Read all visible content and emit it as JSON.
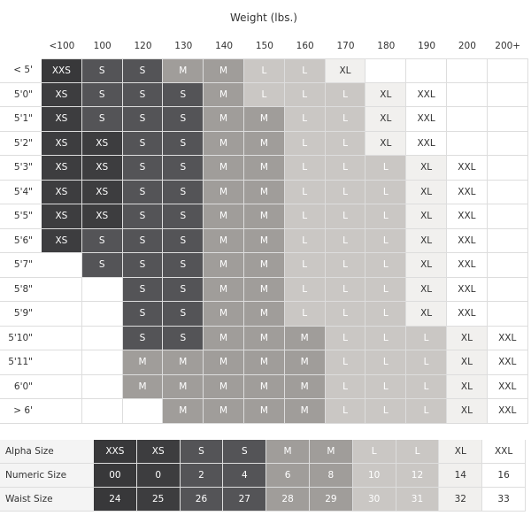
{
  "title": "Weight (lbs.)",
  "weights": [
    "<100",
    "100",
    "120",
    "130",
    "140",
    "150",
    "160",
    "170",
    "180",
    "190",
    "200",
    "200+"
  ],
  "size_colors": {
    "XXS": "#38383a",
    "XS": "#3d3d3f",
    "S": "#545457",
    "M": "#a09d9a",
    "L": "#cac7c4",
    "XL": "#f1f0ee",
    "XXL": "#ffffff"
  },
  "rows": [
    {
      "height": "< 5'",
      "sizes": [
        "XXS",
        "S",
        "S",
        "M",
        "M",
        "L",
        "L",
        "XL",
        null,
        null,
        null,
        null
      ]
    },
    {
      "height": "5'0\"",
      "sizes": [
        "XS",
        "S",
        "S",
        "S",
        "M",
        "L",
        "L",
        "L",
        "XL",
        "XXL",
        null,
        null
      ]
    },
    {
      "height": "5'1\"",
      "sizes": [
        "XS",
        "S",
        "S",
        "S",
        "M",
        "M",
        "L",
        "L",
        "XL",
        "XXL",
        null,
        null
      ]
    },
    {
      "height": "5'2\"",
      "sizes": [
        "XS",
        "XS",
        "S",
        "S",
        "M",
        "M",
        "L",
        "L",
        "XL",
        "XXL",
        null,
        null
      ]
    },
    {
      "height": "5'3\"",
      "sizes": [
        "XS",
        "XS",
        "S",
        "S",
        "M",
        "M",
        "L",
        "L",
        "L",
        "XL",
        "XXL",
        null
      ]
    },
    {
      "height": "5'4\"",
      "sizes": [
        "XS",
        "XS",
        "S",
        "S",
        "M",
        "M",
        "L",
        "L",
        "L",
        "XL",
        "XXL",
        null
      ]
    },
    {
      "height": "5'5\"",
      "sizes": [
        "XS",
        "XS",
        "S",
        "S",
        "M",
        "M",
        "L",
        "L",
        "L",
        "XL",
        "XXL",
        null
      ]
    },
    {
      "height": "5'6\"",
      "sizes": [
        "XS",
        "S",
        "S",
        "S",
        "M",
        "M",
        "L",
        "L",
        "L",
        "XL",
        "XXL",
        null
      ]
    },
    {
      "height": "5'7\"",
      "sizes": [
        null,
        "S",
        "S",
        "S",
        "M",
        "M",
        "L",
        "L",
        "L",
        "XL",
        "XXL",
        null
      ]
    },
    {
      "height": "5'8\"",
      "sizes": [
        null,
        null,
        "S",
        "S",
        "M",
        "M",
        "L",
        "L",
        "L",
        "XL",
        "XXL",
        null
      ]
    },
    {
      "height": "5'9\"",
      "sizes": [
        null,
        null,
        "S",
        "S",
        "M",
        "M",
        "L",
        "L",
        "L",
        "XL",
        "XXL",
        null
      ]
    },
    {
      "height": "5'10\"",
      "sizes": [
        null,
        null,
        "S",
        "S",
        "M",
        "M",
        "M",
        "L",
        "L",
        "L",
        "XL",
        "XXL"
      ]
    },
    {
      "height": "5'11\"",
      "sizes": [
        null,
        null,
        "M",
        "M",
        "M",
        "M",
        "M",
        "L",
        "L",
        "L",
        "XL",
        "XXL"
      ]
    },
    {
      "height": "6'0\"",
      "sizes": [
        null,
        null,
        "M",
        "M",
        "M",
        "M",
        "M",
        "L",
        "L",
        "L",
        "XL",
        "XXL"
      ]
    },
    {
      "height": "> 6'",
      "sizes": [
        null,
        null,
        null,
        "M",
        "M",
        "M",
        "M",
        "L",
        "L",
        "L",
        "XL",
        "XXL"
      ]
    }
  ],
  "conversion": {
    "alpha": {
      "label": "Alpha Size",
      "values": [
        "XXS",
        "XS",
        "S",
        "S",
        "M",
        "M",
        "L",
        "L",
        "XL",
        "XXL"
      ]
    },
    "numeric": {
      "label": "Numeric Size",
      "values": [
        "00",
        "0",
        "2",
        "4",
        "6",
        "8",
        "10",
        "12",
        "14",
        "16"
      ]
    },
    "waist": {
      "label": "Waist Size",
      "values": [
        "24",
        "25",
        "26",
        "27",
        "28",
        "29",
        "30",
        "31",
        "32",
        "33"
      ]
    }
  }
}
